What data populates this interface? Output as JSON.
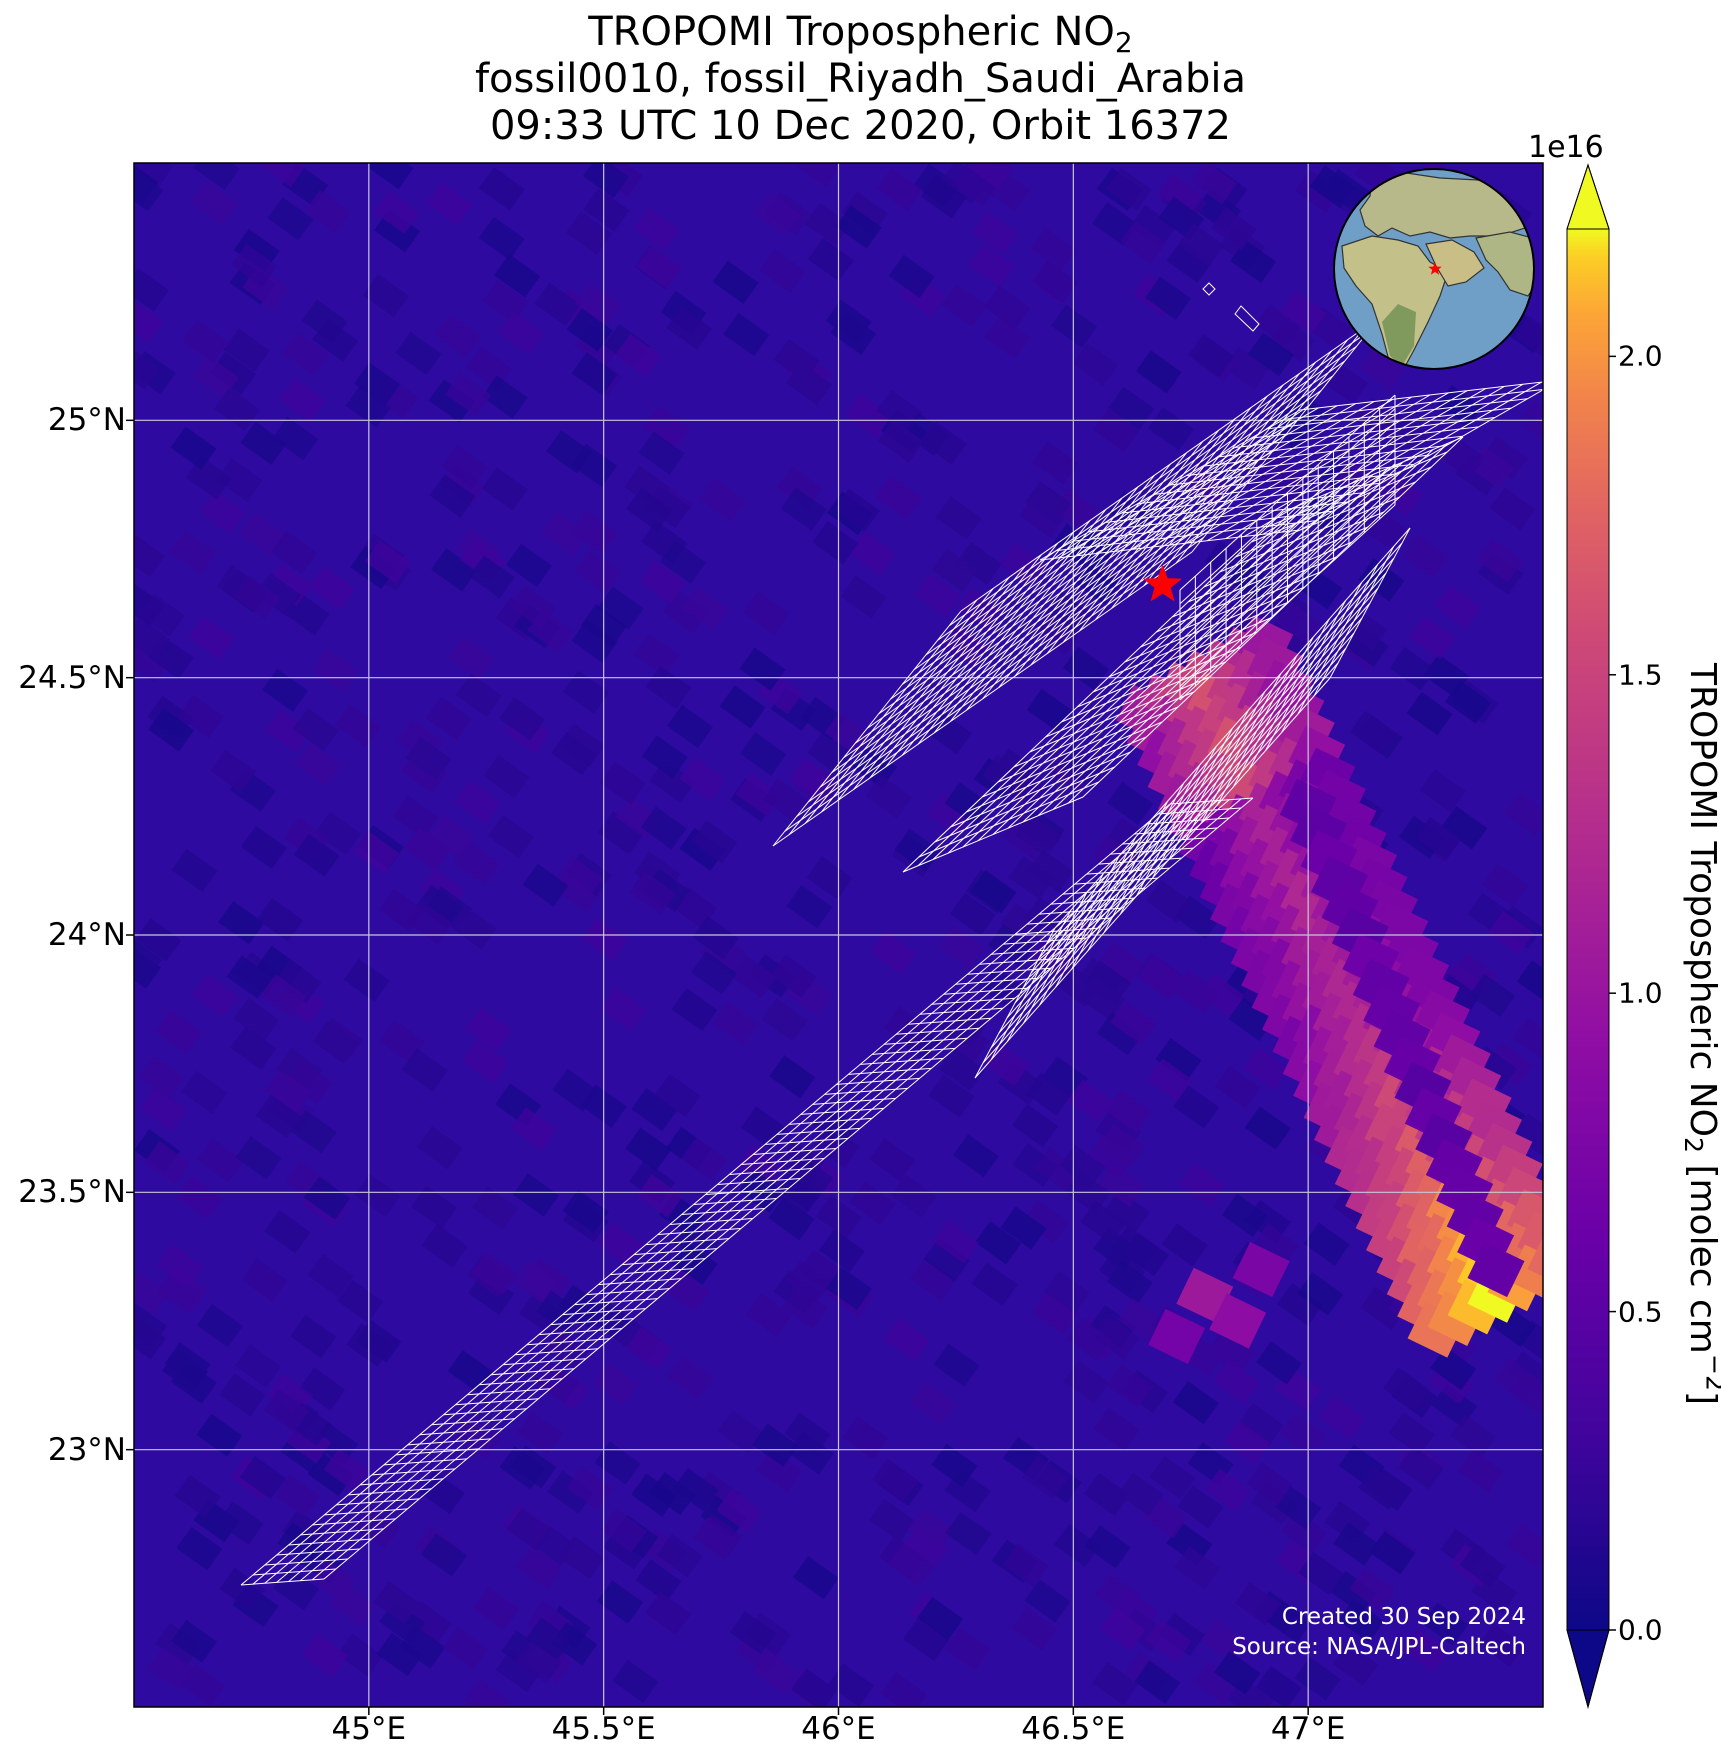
{
  "title": {
    "line1_prefix": "TROPOMI Tropospheric NO",
    "line1_sub": "2",
    "line2": "fossil0010, fossil_Riyadh_Saudi_Arabia",
    "line3": "09:33 UTC 10 Dec 2020, Orbit 16372"
  },
  "map": {
    "lon_range": [
      44.5,
      47.5
    ],
    "lat_range": [
      22.5,
      25.5
    ],
    "x_ticks": [
      {
        "value": 45.0,
        "label": "45°E"
      },
      {
        "value": 45.5,
        "label": "45.5°E"
      },
      {
        "value": 46.0,
        "label": "46°E"
      },
      {
        "value": 46.5,
        "label": "46.5°E"
      },
      {
        "value": 47.0,
        "label": "47°E"
      }
    ],
    "y_ticks": [
      {
        "value": 25.0,
        "label": "25°N"
      },
      {
        "value": 24.5,
        "label": "24.5°N"
      },
      {
        "value": 24.0,
        "label": "24°N"
      },
      {
        "value": 23.5,
        "label": "23.5°N"
      },
      {
        "value": 23.0,
        "label": "23°N"
      }
    ],
    "source_marker": {
      "lon": 46.69,
      "lat": 24.68,
      "color": "#ff0000"
    },
    "background_color": "#2e0aa0",
    "gridline_color": "#c8c8dc",
    "footprint_outline_color": "#ffffff",
    "plume_peak_value": 2.2,
    "credit_line1": "Created 30 Sep 2024",
    "credit_line2": "Source: NASA/JPL-Caltech"
  },
  "colorbar": {
    "colormap": "plasma",
    "exponent_label": "1e16",
    "range": [
      0.0,
      2.2
    ],
    "extend": "both",
    "ticks": [
      {
        "value": 0.0,
        "label": "0.0"
      },
      {
        "value": 0.5,
        "label": "0.5"
      },
      {
        "value": 1.0,
        "label": "1.0"
      },
      {
        "value": 1.5,
        "label": "1.5"
      },
      {
        "value": 2.0,
        "label": "2.0"
      }
    ],
    "label_prefix": "TROPOMI Tropospheric NO",
    "label_sub": "2",
    "label_mid": " [molec cm",
    "label_sup": "−2",
    "label_suffix": "]"
  },
  "globe_inset": {
    "ocean_color": "#6f9ec7",
    "land_color": "#b7b98a",
    "marker_color": "#ff0000"
  }
}
